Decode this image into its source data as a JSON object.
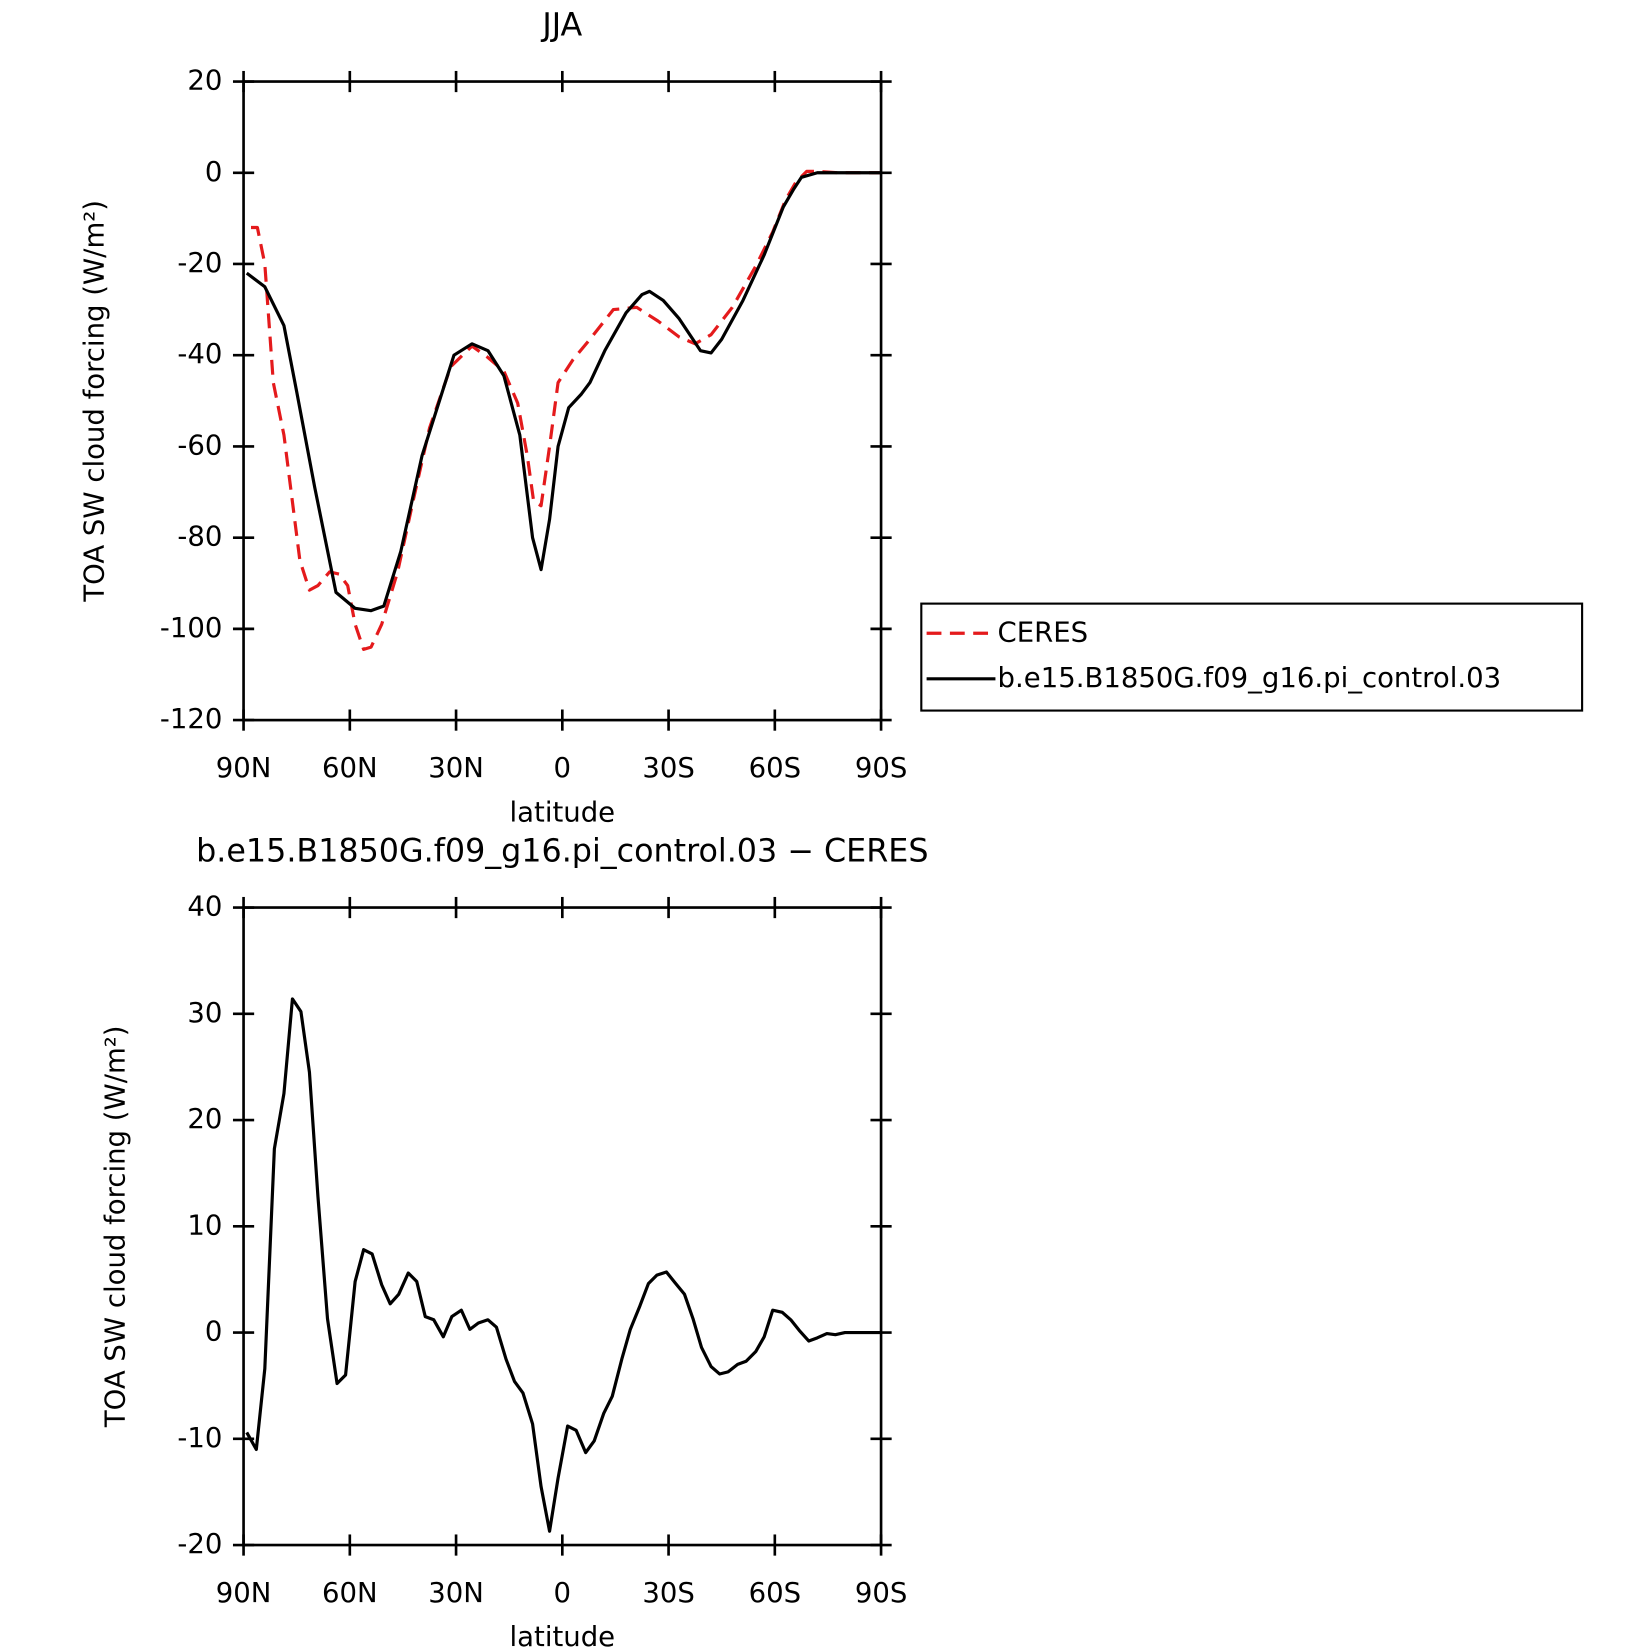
{
  "chart_data": [
    {
      "type": "line",
      "title": "JJA",
      "xlabel": "latitude",
      "ylabel": "TOA SW cloud forcing (W/m²)",
      "xlim": [
        90,
        -90
      ],
      "xticks": [
        {
          "value": 90,
          "label": "90N"
        },
        {
          "value": 60,
          "label": "60N"
        },
        {
          "value": 30,
          "label": "30N"
        },
        0,
        {
          "value": -30,
          "label": "30S"
        },
        {
          "value": -60,
          "label": "60S"
        },
        {
          "value": -90,
          "label": "90S"
        }
      ],
      "ylim": [
        -120,
        20
      ],
      "yticks": [
        -120,
        -100,
        -80,
        -60,
        -40,
        -20,
        0,
        20
      ],
      "legend": "right",
      "series": [
        {
          "name": "CERES",
          "color": "#e41a1c",
          "dash": true,
          "x": [
            87.9,
            86.1,
            84,
            81.6,
            78.6,
            74.1,
            71.4,
            69,
            65.7,
            63,
            60.6,
            58.5,
            56.1,
            54,
            51,
            46.5,
            42,
            37.5,
            31.5,
            25.5,
            21,
            16.5,
            12.6,
            9.9,
            8.1,
            6,
            3.6,
            1.2,
            -3,
            -7.8,
            -14.4,
            -21,
            -27,
            -33,
            -37.5,
            -42,
            -48,
            -54.6,
            -59.4,
            -63,
            -66,
            -69,
            -72,
            -78,
            -90
          ],
          "values": [
            -12,
            -12,
            -20,
            -46,
            -57.5,
            -85,
            -91.5,
            -90.5,
            -87.5,
            -88,
            -90.5,
            -99,
            -104.5,
            -104,
            -99,
            -87.5,
            -71.5,
            -56,
            -42.5,
            -38,
            -40.5,
            -43.5,
            -50.5,
            -62,
            -72,
            -73,
            -60,
            -46,
            -41,
            -36.5,
            -30,
            -29.5,
            -32.5,
            -36,
            -37.5,
            -35.5,
            -29.5,
            -20.5,
            -13,
            -6,
            -2,
            0.3,
            0.3,
            0,
            0
          ]
        },
        {
          "name": "b.e15.B1850G.f09_g16.pi_control.03",
          "color": "#000000",
          "dash": false,
          "x": [
            89.1,
            84,
            78.6,
            75,
            69.9,
            63.9,
            58.5,
            54,
            50.4,
            45.6,
            39.6,
            30.6,
            25.5,
            21,
            16.5,
            12,
            8.4,
            6,
            3.6,
            1.2,
            -1.8,
            -5.4,
            -7.8,
            -12,
            -18,
            -22.5,
            -24.6,
            -28.5,
            -33,
            -39,
            -42,
            -45,
            -51,
            -57,
            -62.4,
            -65.4,
            -67.5,
            -72,
            -90
          ],
          "values": [
            -22,
            -25,
            -33.5,
            -48,
            -69,
            -92,
            -95.5,
            -96,
            -95,
            -83,
            -62,
            -40,
            -37.5,
            -39,
            -44.5,
            -57.5,
            -80,
            -87,
            -76,
            -60,
            -51.5,
            -48.5,
            -46,
            -39,
            -30.7,
            -26.7,
            -26,
            -28,
            -32,
            -39,
            -39.5,
            -36.5,
            -28,
            -18,
            -7.5,
            -3.5,
            -1,
            0,
            0
          ]
        }
      ]
    },
    {
      "type": "line",
      "title": "b.e15.B1850G.f09_g16.pi_control.03 − CERES",
      "xlabel": "latitude",
      "ylabel": "TOA SW cloud forcing (W/m²)",
      "xlim": [
        90,
        -90
      ],
      "xticks": [
        {
          "value": 90,
          "label": "90N"
        },
        {
          "value": 60,
          "label": "60N"
        },
        {
          "value": 30,
          "label": "30N"
        },
        0,
        {
          "value": -30,
          "label": "30S"
        },
        {
          "value": -60,
          "label": "60S"
        },
        {
          "value": -90,
          "label": "90S"
        }
      ],
      "ylim": [
        -20,
        40
      ],
      "yticks": [
        -20,
        -10,
        0,
        10,
        20,
        30,
        40
      ],
      "series": [
        {
          "color": "#000000",
          "dash": false,
          "x": [
            89.1,
            86.4,
            84,
            81.3,
            78.6,
            76.2,
            73.8,
            71.4,
            69,
            66.3,
            63.6,
            61.2,
            58.5,
            56.1,
            53.7,
            51,
            48.6,
            46.2,
            43.5,
            41.1,
            38.7,
            36.3,
            33.6,
            31.2,
            28.5,
            26.1,
            23.7,
            21,
            18.6,
            15.9,
            13.5,
            11.1,
            8.4,
            6,
            3.6,
            1.2,
            -1.5,
            -3.9,
            -6.6,
            -9,
            -11.7,
            -14.1,
            -16.8,
            -19.2,
            -21.9,
            -24.3,
            -26.7,
            -29.4,
            -31.8,
            -34.5,
            -36.9,
            -39.3,
            -42,
            -44.4,
            -46.8,
            -49.5,
            -51.9,
            -54.6,
            -57,
            -59.4,
            -62.1,
            -64.5,
            -66.9,
            -69.6,
            -72,
            -74.7,
            -77.1,
            -79.8,
            -90
          ],
          "values": [
            -9.4,
            -11,
            -3.4,
            17.3,
            22.5,
            31.4,
            30.2,
            24.5,
            12.8,
            1.3,
            -4.8,
            -4,
            4.8,
            7.8,
            7.4,
            4.5,
            2.7,
            3.6,
            5.6,
            4.8,
            1.5,
            1.2,
            -0.4,
            1.5,
            2.1,
            0.3,
            0.9,
            1.2,
            0.5,
            -2.5,
            -4.6,
            -5.7,
            -8.6,
            -14.5,
            -18.7,
            -13.7,
            -8.8,
            -9.2,
            -11.3,
            -10.2,
            -7.6,
            -6,
            -2.5,
            0.3,
            2.5,
            4.6,
            5.4,
            5.7,
            4.7,
            3.6,
            1.3,
            -1.4,
            -3.2,
            -3.9,
            -3.7,
            -3,
            -2.7,
            -1.8,
            -0.4,
            2.1,
            1.9,
            1.2,
            0.2,
            -0.8,
            -0.5,
            -0.1,
            -0.2,
            0,
            0
          ]
        }
      ]
    }
  ]
}
